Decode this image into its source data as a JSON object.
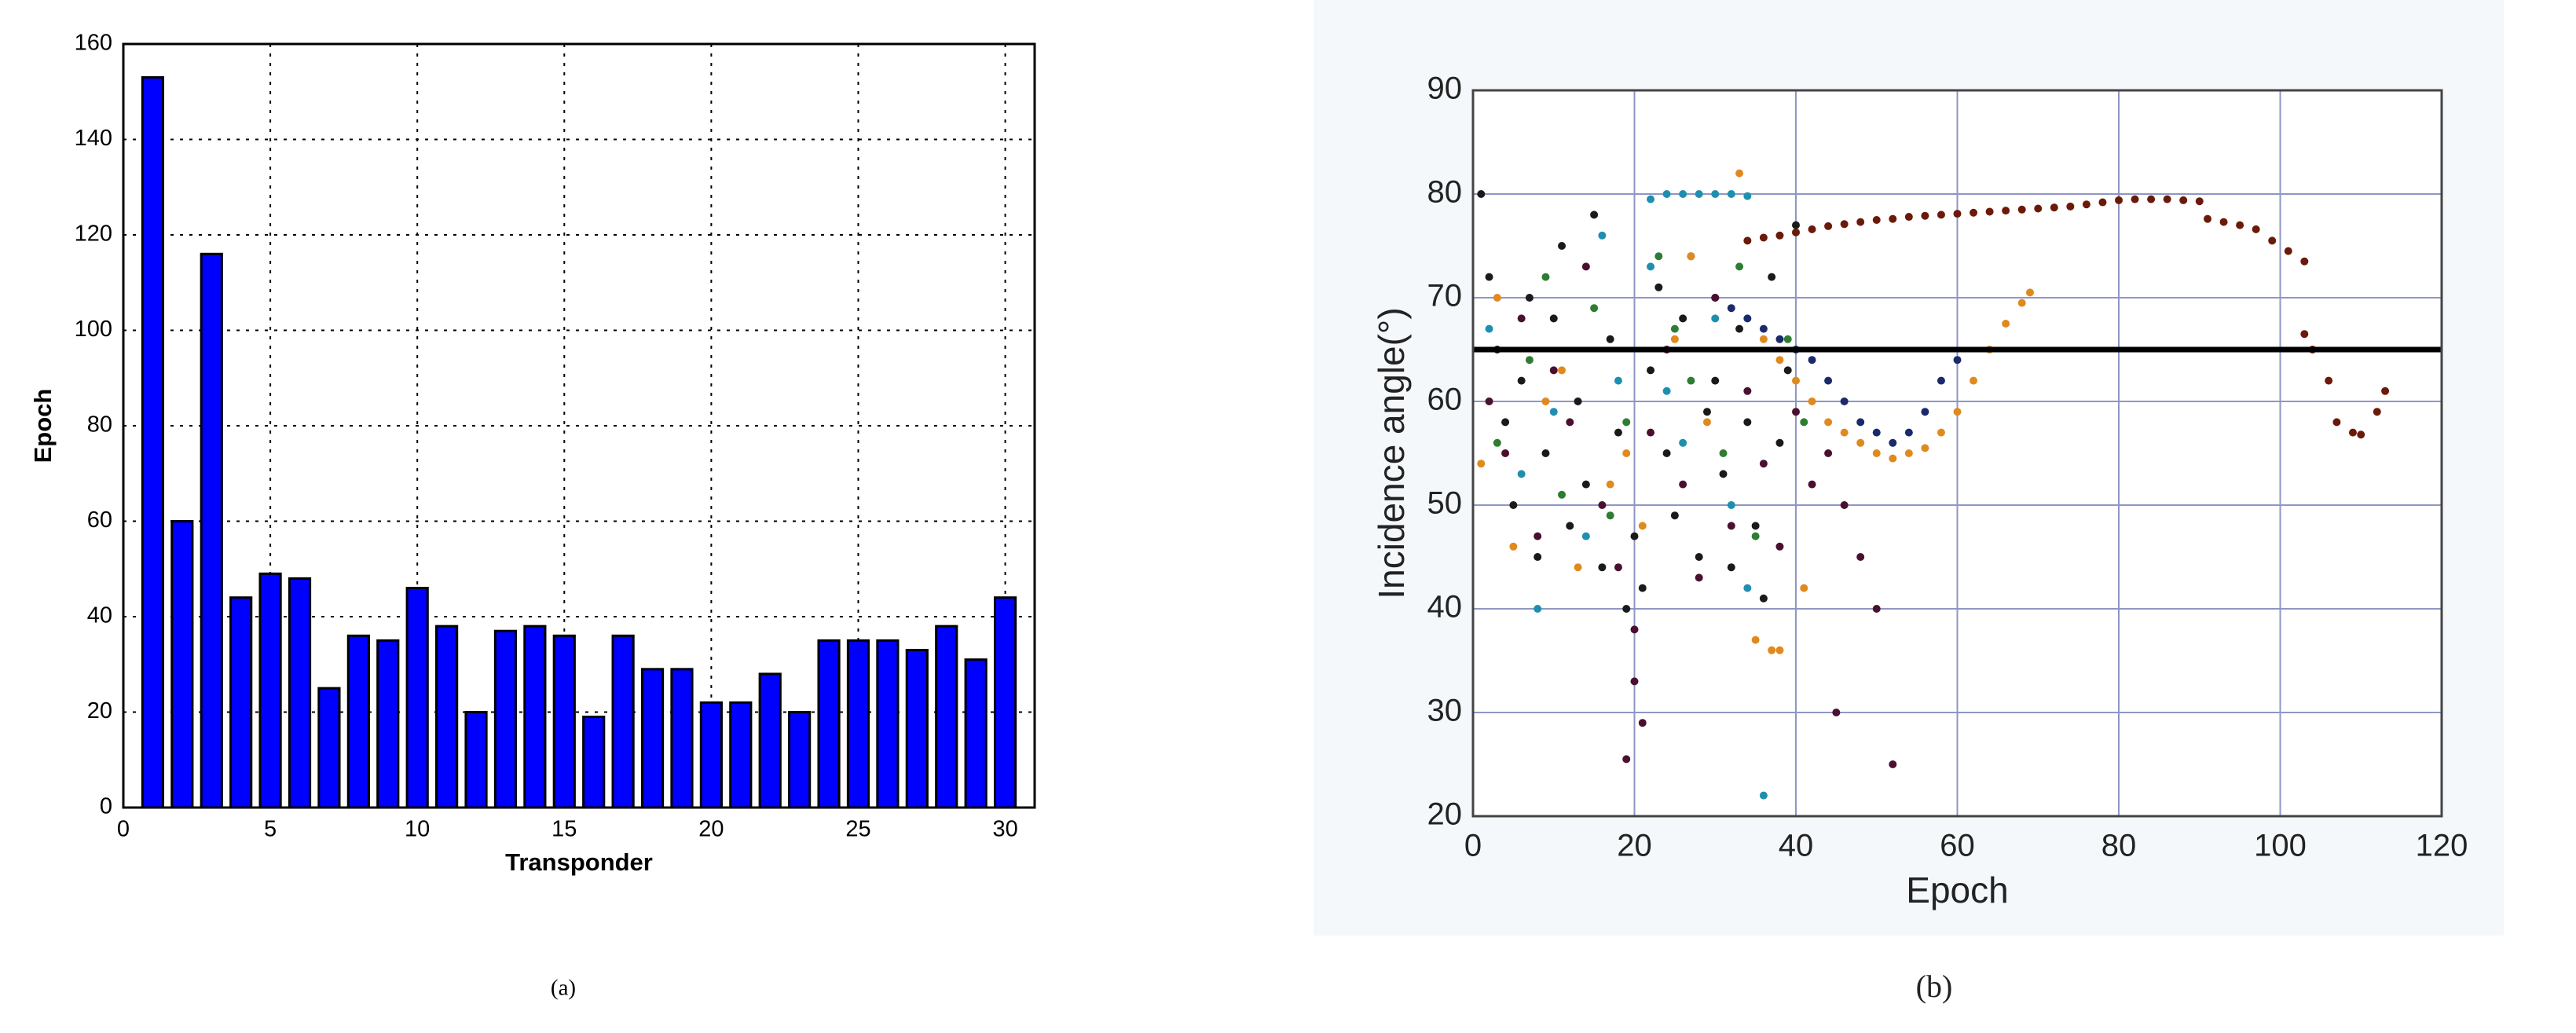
{
  "chart_data": [
    {
      "type": "bar",
      "caption": "(a)",
      "xlabel": "Transponder",
      "ylabel": "Epoch",
      "x": [
        1,
        2,
        3,
        4,
        5,
        6,
        7,
        8,
        9,
        10,
        11,
        12,
        13,
        14,
        15,
        16,
        17,
        18,
        19,
        20,
        21,
        22,
        23,
        24,
        25,
        26,
        27,
        28,
        29,
        30
      ],
      "values": [
        153,
        60,
        116,
        44,
        49,
        48,
        25,
        36,
        35,
        46,
        38,
        20,
        37,
        38,
        36,
        19,
        36,
        29,
        29,
        22,
        22,
        28,
        20,
        35,
        35,
        35,
        33,
        38,
        31,
        44
      ],
      "color": "#0000ff",
      "xlim": [
        0,
        31
      ],
      "xticks": [
        0,
        5,
        10,
        15,
        20,
        25,
        30
      ],
      "ylim": [
        0,
        160
      ],
      "yticks": [
        0,
        20,
        40,
        60,
        80,
        100,
        120,
        140,
        160
      ],
      "grid": true
    },
    {
      "type": "scatter",
      "caption": "(b)",
      "xlabel": "Epoch",
      "ylabel": "Incidence angle(°)",
      "xlim": [
        0,
        120
      ],
      "xticks": [
        0,
        20,
        40,
        60,
        80,
        100,
        120
      ],
      "ylim": [
        20,
        90
      ],
      "yticks": [
        20,
        30,
        40,
        50,
        60,
        70,
        80,
        90
      ],
      "grid": true,
      "hline": 65,
      "series": [
        {
          "color": "#6b1a0a",
          "x": [
            34,
            36,
            38,
            40,
            42,
            44,
            46,
            48,
            50,
            52,
            54,
            56,
            58,
            60,
            62,
            64,
            66,
            68,
            70,
            72,
            74,
            76,
            78,
            80,
            82,
            84,
            86,
            88,
            90,
            91,
            93,
            95,
            97,
            99,
            101,
            103,
            103,
            104,
            106,
            107,
            109,
            110,
            112,
            113
          ],
          "y": [
            75.5,
            75.8,
            76,
            76.3,
            76.6,
            76.9,
            77.1,
            77.3,
            77.5,
            77.6,
            77.8,
            77.9,
            78,
            78.1,
            78.2,
            78.3,
            78.4,
            78.5,
            78.6,
            78.7,
            78.8,
            79,
            79.2,
            79.4,
            79.5,
            79.5,
            79.5,
            79.4,
            79.3,
            77.6,
            77.3,
            77,
            76.6,
            75.5,
            74.5,
            73.5,
            66.5,
            65,
            62,
            58,
            57,
            56.8,
            59,
            61
          ]
        },
        {
          "color": "#e08a1e",
          "x": [
            36,
            38,
            40,
            42,
            44,
            46,
            48,
            50,
            52,
            54,
            56,
            58,
            60,
            62,
            64,
            66,
            68,
            69
          ],
          "y": [
            66,
            64,
            62,
            60,
            58,
            57,
            56,
            55,
            54.5,
            55,
            55.5,
            57,
            59,
            62,
            65,
            67.5,
            69.5,
            70.5
          ]
        },
        {
          "color": "#1a2a6b",
          "x": [
            30,
            32,
            34,
            36,
            38,
            40,
            42,
            44,
            46,
            48,
            50,
            52,
            54,
            56,
            58,
            60
          ],
          "y": [
            70,
            69,
            68,
            67,
            66,
            65,
            64,
            62,
            60,
            58,
            57,
            56,
            57,
            59,
            62,
            64
          ]
        },
        {
          "color": "#1f8fb0",
          "x": [
            22,
            24,
            26,
            28,
            30,
            32,
            34
          ],
          "y": [
            79.5,
            80,
            80,
            80,
            80,
            80,
            79.8
          ]
        },
        {
          "color": "#1a1a1a",
          "x": [
            1,
            2,
            3,
            4,
            5,
            6,
            7,
            8,
            9,
            10,
            11,
            12,
            13,
            14,
            15,
            16,
            17,
            18,
            19,
            20,
            21,
            22,
            23,
            24,
            25,
            26,
            27,
            28,
            29,
            30,
            31,
            32,
            33,
            34,
            35,
            36,
            37,
            38,
            39,
            40
          ],
          "y": [
            80,
            72,
            65,
            58,
            50,
            62,
            70,
            45,
            55,
            68,
            75,
            48,
            60,
            52,
            78,
            44,
            66,
            57,
            40,
            47,
            42,
            63,
            71,
            55,
            49,
            68,
            74,
            45,
            59,
            62,
            53,
            44,
            67,
            58,
            48,
            41,
            72,
            56,
            63,
            77
          ]
        },
        {
          "color": "#4a1030",
          "x": [
            2,
            4,
            6,
            8,
            10,
            12,
            14,
            16,
            18,
            20,
            22,
            24,
            26,
            28,
            30,
            32,
            34,
            36,
            38,
            40,
            42,
            44,
            46,
            48,
            50,
            19,
            20,
            21,
            45,
            52
          ],
          "y": [
            60,
            55,
            68,
            47,
            63,
            58,
            73,
            50,
            44,
            38,
            57,
            65,
            52,
            43,
            70,
            48,
            61,
            54,
            46,
            59,
            52,
            55,
            50,
            45,
            40,
            25.5,
            33,
            29,
            30,
            25
          ]
        },
        {
          "color": "#2e7d32",
          "x": [
            3,
            7,
            11,
            15,
            19,
            23,
            27,
            31,
            35,
            39,
            9,
            17,
            25,
            33,
            41
          ],
          "y": [
            56,
            64,
            51,
            69,
            58,
            74,
            62,
            55,
            47,
            66,
            72,
            49,
            67,
            73,
            58
          ]
        },
        {
          "color": "#e08a1e",
          "x": [
            1,
            5,
            9,
            13,
            17,
            21,
            25,
            29,
            33,
            37,
            41,
            3,
            11,
            19,
            27,
            35,
            38
          ],
          "y": [
            54,
            46,
            60,
            44,
            52,
            48,
            66,
            58,
            82,
            36,
            42,
            70,
            63,
            55,
            74,
            37,
            36
          ]
        },
        {
          "color": "#1f8fb0",
          "x": [
            2,
            6,
            10,
            14,
            18,
            22,
            26,
            30,
            34,
            8,
            16,
            24,
            32,
            36
          ],
          "y": [
            67,
            53,
            59,
            47,
            62,
            73,
            56,
            68,
            42,
            40,
            76,
            61,
            50,
            22
          ]
        }
      ]
    }
  ]
}
